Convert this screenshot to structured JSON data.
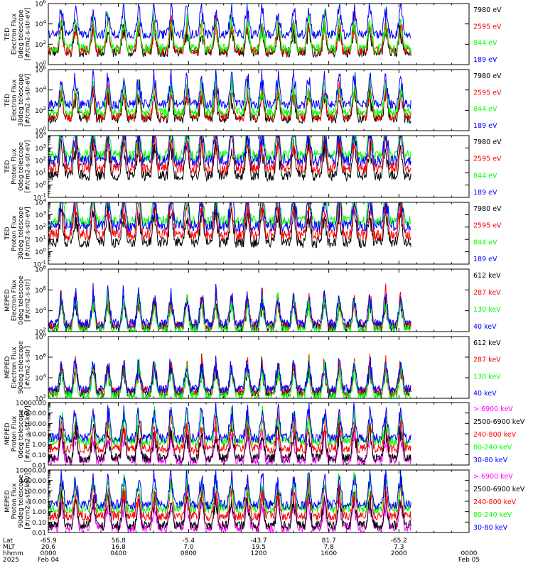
{
  "colors": {
    "black": "#000000",
    "red": "#ff0000",
    "green": "#00ff00",
    "blue": "#0000ff",
    "magenta": "#ff00ff"
  },
  "chart_data": [
    {
      "type": "line",
      "ylabel": [
        "TED",
        "Electron Flux",
        "0deg telescope",
        "[#/cm2-s-str-eV]"
      ],
      "yscale": "log",
      "ylim": [
        1,
        1000000
      ],
      "yticks": [
        "10^0",
        "10^2",
        "10^4",
        "10^6"
      ],
      "series": [
        {
          "name": "7980 eV",
          "color": "#000000",
          "level": 1
        },
        {
          "name": "2595 eV",
          "color": "#ff0000",
          "level": 1.2
        },
        {
          "name": "844 eV",
          "color": "#00ff00",
          "level": 1.4
        },
        {
          "name": "189 eV",
          "color": "#0000ff",
          "level": 2.8
        }
      ]
    },
    {
      "type": "line",
      "ylabel": [
        "TED",
        "Electron Flux",
        "30deg telescope",
        "[#/cm2-s-str-eV]"
      ],
      "yscale": "log",
      "ylim": [
        1,
        1000000
      ],
      "yticks": [
        "10^0",
        "10^2",
        "10^4",
        "10^6"
      ],
      "series": [
        {
          "name": "7980 eV",
          "color": "#000000",
          "level": 1
        },
        {
          "name": "2595 eV",
          "color": "#ff0000",
          "level": 1.2
        },
        {
          "name": "844 eV",
          "color": "#00ff00",
          "level": 1.6
        },
        {
          "name": "189 eV",
          "color": "#0000ff",
          "level": 2.4
        }
      ]
    },
    {
      "type": "line",
      "ylabel": [
        "TED",
        "Proton Flux",
        "0deg telescope",
        "[#/cm2-s-str-eV]"
      ],
      "yscale": "log",
      "ylim": [
        0.1,
        10000
      ],
      "yticks": [
        "10^-1",
        "10^0",
        "10^1",
        "10^2",
        "10^3",
        "10^4"
      ],
      "series": [
        {
          "name": "7980 eV",
          "color": "#000000",
          "level": 0.6
        },
        {
          "name": "2595 eV",
          "color": "#ff0000",
          "level": 1.2
        },
        {
          "name": "844 eV",
          "color": "#00ff00",
          "level": 2.2
        },
        {
          "name": "189 eV",
          "color": "#0000ff",
          "level": 1.8
        }
      ]
    },
    {
      "type": "line",
      "ylabel": [
        "TED",
        "Proton Flux",
        "30deg telescope",
        "[#/cm2-s-str-eV]"
      ],
      "yscale": "log",
      "ylim": [
        0.1,
        10000
      ],
      "yticks": [
        "10^-1",
        "10^0",
        "10^1",
        "10^2",
        "10^3",
        "10^4"
      ],
      "series": [
        {
          "name": "7980 eV",
          "color": "#000000",
          "level": 0.6
        },
        {
          "name": "2595 eV",
          "color": "#ff0000",
          "level": 1.2
        },
        {
          "name": "844 eV",
          "color": "#00ff00",
          "level": 2.3
        },
        {
          "name": "189 eV",
          "color": "#0000ff",
          "level": 1.9
        }
      ]
    },
    {
      "type": "line",
      "ylabel": [
        "MEPED",
        "Electron Flux",
        "0deg telescope",
        "[#/cm2-s-str]"
      ],
      "yscale": "log",
      "ylim": [
        100,
        100000000
      ],
      "yticks": [
        "10^2",
        "10^4",
        "10^6",
        "10^8"
      ],
      "series": [
        {
          "name": "612 keV",
          "color": "#000000",
          "level": 2.3
        },
        {
          "name": "287 keV",
          "color": "#ff0000",
          "level": 2.4
        },
        {
          "name": "130 keV",
          "color": "#00ff00",
          "level": 2.1
        },
        {
          "name": "40 keV",
          "color": "#0000ff",
          "level": 2.6
        }
      ]
    },
    {
      "type": "line",
      "ylabel": [
        "MEPED",
        "Electron Flux",
        "90deg telescope",
        "[#/cm2-s-str]"
      ],
      "yscale": "log",
      "ylim": [
        100,
        100000000
      ],
      "yticks": [
        "10^2",
        "10^4",
        "10^6",
        "10^8"
      ],
      "series": [
        {
          "name": "612 keV",
          "color": "#000000",
          "level": 2.4
        },
        {
          "name": "287 keV",
          "color": "#ff0000",
          "level": 2.5
        },
        {
          "name": "130 keV",
          "color": "#00ff00",
          "level": 2.1
        },
        {
          "name": "40 keV",
          "color": "#0000ff",
          "level": 2.7
        }
      ]
    },
    {
      "type": "line",
      "ylabel": [
        "MEPED",
        "Proton Flux",
        "0deg telescope",
        "[#/cm2-s-str-keV]"
      ],
      "yscale": "log",
      "ylim": [
        0.01,
        10000
      ],
      "yticks": [
        "0.01",
        "0.10",
        "1.00",
        "10.00",
        "100.00",
        "1000.00",
        "10000.00"
      ],
      "series": [
        {
          "name": "> 6900 keV",
          "color": "#ff00ff",
          "level": -1.7
        },
        {
          "name": "2500-6900 keV",
          "color": "#000000",
          "level": -1.5
        },
        {
          "name": "240-800 keV",
          "color": "#ff0000",
          "level": -0.6
        },
        {
          "name": "80-240 keV",
          "color": "#00ff00",
          "level": 0.1
        },
        {
          "name": "30-80 keV",
          "color": "#0000ff",
          "level": 0.4
        }
      ]
    },
    {
      "type": "line",
      "ylabel": [
        "MEPED",
        "Proton Flux",
        "90deg telescope",
        "[#/cm2-s-str-keV]"
      ],
      "yscale": "log",
      "ylim": [
        0.01,
        10000
      ],
      "yticks": [
        "0.01",
        "0.10",
        "1.00",
        "10.00",
        "100.00",
        "1000.00",
        "10000.00"
      ],
      "series": [
        {
          "name": "> 6900 keV",
          "color": "#ff00ff",
          "level": -1.7
        },
        {
          "name": "2500-6900 keV",
          "color": "#000000",
          "level": -1.5
        },
        {
          "name": "240-800 keV",
          "color": "#ff0000",
          "level": -0.6
        },
        {
          "name": "80-240 keV",
          "color": "#00ff00",
          "level": 0.1
        },
        {
          "name": "30-80 keV",
          "color": "#0000ff",
          "level": 0.5
        }
      ]
    }
  ],
  "x_axis": {
    "row_labels": [
      "Lat",
      "MLT",
      "hhmm",
      "2025"
    ],
    "ticks": [
      {
        "hours": 0,
        "lat": "-65.9",
        "mlt": "20.6",
        "hhmm": "0000",
        "date": "Feb 04"
      },
      {
        "hours": 4,
        "lat": "56.8",
        "mlt": "16.8",
        "hhmm": "0400",
        "date": ""
      },
      {
        "hours": 8,
        "lat": "-5.4",
        "mlt": "7.0",
        "hhmm": "0800",
        "date": ""
      },
      {
        "hours": 12,
        "lat": "-43.7",
        "mlt": "19.5",
        "hhmm": "1200",
        "date": ""
      },
      {
        "hours": 16,
        "lat": "81.7",
        "mlt": "7.8",
        "hhmm": "1600",
        "date": ""
      },
      {
        "hours": 20,
        "lat": "-65.2",
        "mlt": "7.3",
        "hhmm": "2000",
        "date": ""
      },
      {
        "hours": 24,
        "lat": "",
        "mlt": "",
        "hhmm": "0000",
        "date": "Feb 05"
      }
    ],
    "data_end_hours": 20.7,
    "passes": [
      0.75,
      1.55,
      2.55,
      3.4,
      4.3,
      5.15,
      6.05,
      7.0,
      7.9,
      8.75,
      9.55,
      10.45,
      11.35,
      12.2,
      13.1,
      14.0,
      14.85,
      15.75,
      16.6,
      17.45,
      18.35,
      19.25,
      20.1
    ]
  }
}
